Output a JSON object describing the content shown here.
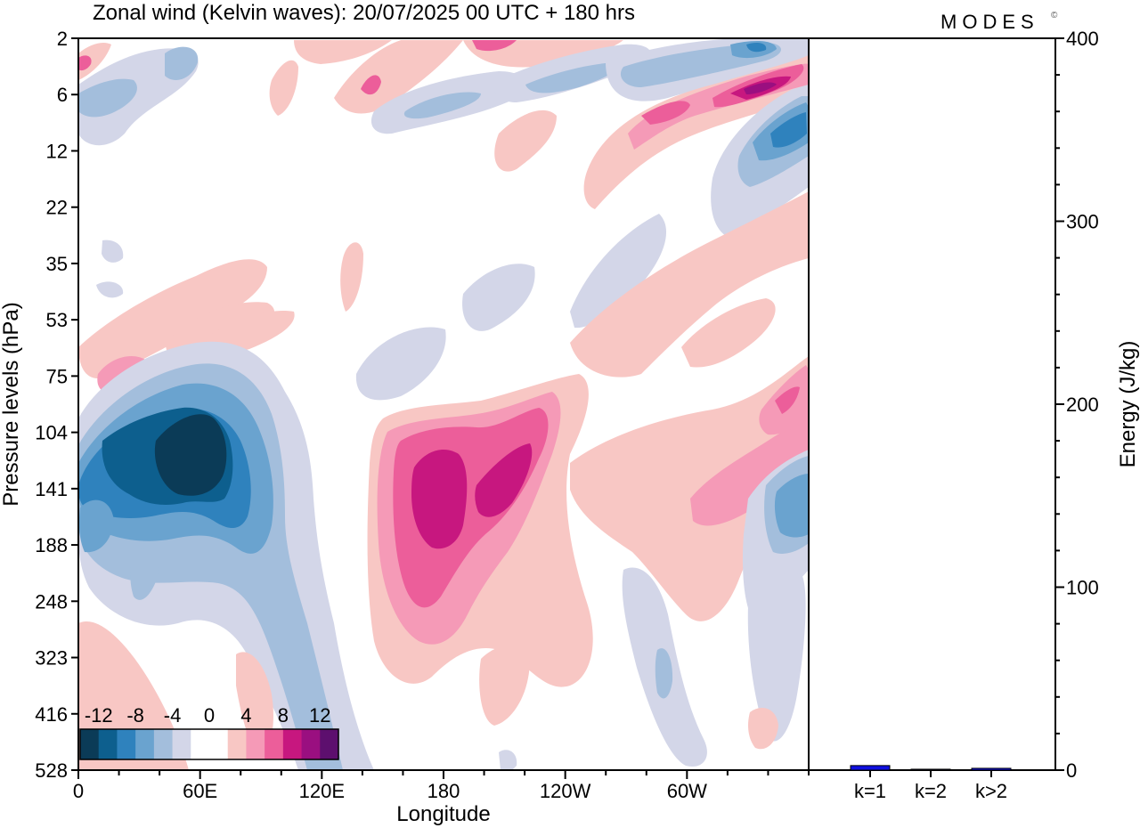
{
  "header": {
    "title": "Zonal wind (Kelvin waves):  20/07/2025  00 UTC  + 180 hrs",
    "brand": "MODES",
    "brand_mark": "©"
  },
  "chart_data": [
    {
      "type": "heatmap",
      "title": "Zonal wind (Kelvin waves):  20/07/2025  00 UTC  + 180 hrs",
      "xlabel": "Longitude",
      "ylabel": "Pressure levels (hPa)",
      "x_ticks": [
        "0",
        "60E",
        "120E",
        "180",
        "120W",
        "60W"
      ],
      "x_tick_degrees": [
        0,
        60,
        120,
        180,
        240,
        300
      ],
      "xlim": [
        0,
        360
      ],
      "y_ticks": [
        "2",
        "6",
        "12",
        "22",
        "35",
        "53",
        "75",
        "104",
        "141",
        "188",
        "248",
        "323",
        "416",
        "528"
      ],
      "levels": [
        -12,
        -8,
        -4,
        0,
        4,
        8,
        12
      ],
      "colorbar_labels": [
        "-12",
        "-8",
        "-4",
        "0",
        "4",
        "8",
        "12"
      ],
      "colorbar_colors": [
        "#0b3b57",
        "#0d5f8e",
        "#2f82bd",
        "#6aa3cf",
        "#a3bedc",
        "#d3d6e8",
        "#ffffff",
        "#ffffff",
        "#f8c7c4",
        "#f59ab7",
        "#ec5e9a",
        "#c7177f",
        "#9a0f80",
        "#5d0f6e"
      ],
      "features": [
        {
          "kind": "negative",
          "lon": 55,
          "level_hpa": 120,
          "peak": -16
        },
        {
          "kind": "positive",
          "lon": 180,
          "level_hpa": 140,
          "peak": 13
        },
        {
          "kind": "positive",
          "lon": 205,
          "level_hpa": 135,
          "peak": 11
        },
        {
          "kind": "positive",
          "lon": 330,
          "level_hpa": 5,
          "peak": 14
        },
        {
          "kind": "negative",
          "lon": 345,
          "level_hpa": 10,
          "peak": -11
        },
        {
          "kind": "negative",
          "lon": 350,
          "level_hpa": 150,
          "peak": -8
        }
      ]
    },
    {
      "type": "bar",
      "categories": [
        "k=1",
        "k=2",
        "k>2"
      ],
      "values": [
        2.5,
        0.5,
        1.0
      ],
      "ylabel": "Energy (J/kg)",
      "ylim": [
        0,
        400
      ],
      "y_ticks": [
        "0",
        "100",
        "200",
        "300",
        "400"
      ],
      "y_tick_values": [
        0,
        100,
        200,
        300,
        400
      ],
      "bar_color": "#1010e0"
    }
  ]
}
